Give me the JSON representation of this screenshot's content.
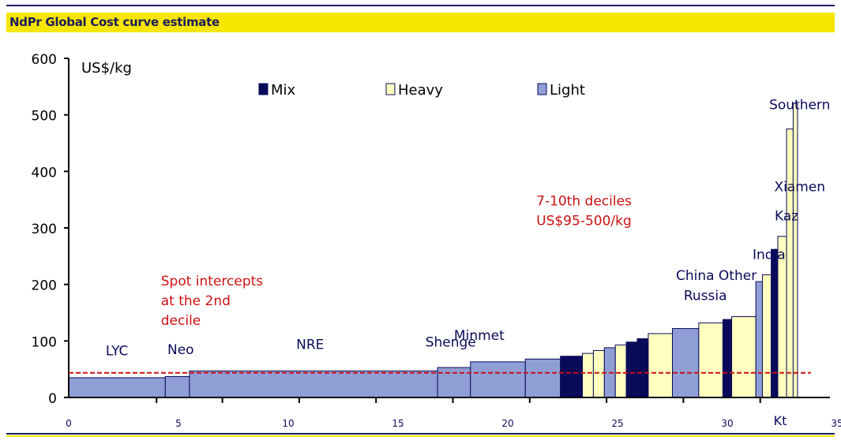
{
  "page": {
    "title": "NdPr Global Cost curve estimate"
  },
  "chart_data": {
    "type": "bar",
    "subtype": "cost-curve",
    "title": "NdPr Global Cost curve estimate",
    "ylabel": "US$/kg",
    "xlabel": "Kt",
    "xlim": [
      0,
      35
    ],
    "ylim": [
      0,
      600
    ],
    "x_ticks": [
      0,
      5,
      10,
      15,
      20,
      25,
      30,
      35
    ],
    "y_ticks": [
      0,
      100,
      200,
      300,
      400,
      500,
      600
    ],
    "grid": false,
    "legend_position": "top",
    "legend": [
      {
        "name": "Mix",
        "color": "#0a0a5a"
      },
      {
        "name": "Heavy",
        "color": "#ffffc0"
      },
      {
        "name": "Light",
        "color": "#8f9fd6"
      }
    ],
    "spot_line": {
      "value": 52,
      "color": "#cc1111",
      "style": "dashed"
    },
    "bars": [
      {
        "x0": 0.0,
        "x1": 4.4,
        "value": 35,
        "type": "Light"
      },
      {
        "x0": 4.4,
        "x1": 5.5,
        "value": 37,
        "type": "Light"
      },
      {
        "x0": 5.5,
        "x1": 16.8,
        "value": 47,
        "type": "Light"
      },
      {
        "x0": 16.8,
        "x1": 18.3,
        "value": 53,
        "type": "Light"
      },
      {
        "x0": 18.3,
        "x1": 20.8,
        "value": 63,
        "type": "Light"
      },
      {
        "x0": 20.8,
        "x1": 22.4,
        "value": 68,
        "type": "Light"
      },
      {
        "x0": 22.4,
        "x1": 23.4,
        "value": 73,
        "type": "Mix"
      },
      {
        "x0": 23.4,
        "x1": 23.9,
        "value": 78,
        "type": "Heavy"
      },
      {
        "x0": 23.9,
        "x1": 24.4,
        "value": 83,
        "type": "Heavy"
      },
      {
        "x0": 24.4,
        "x1": 24.9,
        "value": 88,
        "type": "Light"
      },
      {
        "x0": 24.9,
        "x1": 25.4,
        "value": 93,
        "type": "Heavy"
      },
      {
        "x0": 25.4,
        "x1": 25.9,
        "value": 98,
        "type": "Mix"
      },
      {
        "x0": 25.9,
        "x1": 26.4,
        "value": 104,
        "type": "Mix"
      },
      {
        "x0": 26.4,
        "x1": 27.5,
        "value": 113,
        "type": "Heavy"
      },
      {
        "x0": 27.5,
        "x1": 28.7,
        "value": 122,
        "type": "Light"
      },
      {
        "x0": 28.7,
        "x1": 29.8,
        "value": 132,
        "type": "Heavy"
      },
      {
        "x0": 29.8,
        "x1": 30.2,
        "value": 138,
        "type": "Mix"
      },
      {
        "x0": 30.2,
        "x1": 31.3,
        "value": 143,
        "type": "Heavy"
      },
      {
        "x0": 31.3,
        "x1": 31.6,
        "value": 205,
        "type": "Light"
      },
      {
        "x0": 31.6,
        "x1": 32.0,
        "value": 217,
        "type": "Heavy"
      },
      {
        "x0": 32.0,
        "x1": 32.3,
        "value": 262,
        "type": "Mix"
      },
      {
        "x0": 32.3,
        "x1": 32.7,
        "value": 285,
        "type": "Heavy"
      },
      {
        "x0": 32.7,
        "x1": 33.0,
        "value": 475,
        "type": "Heavy"
      },
      {
        "x0": 33.0,
        "x1": 33.2,
        "value": 520,
        "type": "Heavy"
      }
    ],
    "labels": [
      {
        "text": "LYC",
        "x": 2.2,
        "y": 75,
        "color": "#0a0a5a"
      },
      {
        "text": "Neo",
        "x": 5.1,
        "y": 77,
        "color": "#0a0a5a"
      },
      {
        "text": "NRE",
        "x": 11.0,
        "y": 86,
        "color": "#0a0a5a"
      },
      {
        "text": "Shenge",
        "x": 17.4,
        "y": 90,
        "color": "#0a0a5a"
      },
      {
        "text": "Minmet",
        "x": 18.7,
        "y": 102,
        "color": "#0a0a5a"
      },
      {
        "text": "China Other",
        "x": 29.5,
        "y": 208,
        "color": "#0a0a5a"
      },
      {
        "text": "Russia",
        "x": 29.0,
        "y": 172,
        "color": "#0a0a5a"
      },
      {
        "text": "India",
        "x": 31.9,
        "y": 245,
        "color": "#0a0a5a"
      },
      {
        "text": "Kaz",
        "x": 32.7,
        "y": 313,
        "color": "#0a0a5a"
      },
      {
        "text": "Xiamen",
        "x": 33.3,
        "y": 365,
        "color": "#0a0a5a"
      },
      {
        "text": "Southern",
        "x": 33.3,
        "y": 510,
        "color": "#0a0a5a"
      }
    ],
    "annotations": [
      {
        "lines": [
          "Spot intercepts",
          "at the 2nd",
          "decile"
        ],
        "x": 4.2,
        "y": 198,
        "color": "#cc1111"
      },
      {
        "lines": [
          "7-10th deciles",
          "US$95-500/kg"
        ],
        "x": 21.3,
        "y": 340,
        "color": "#cc1111"
      }
    ]
  }
}
